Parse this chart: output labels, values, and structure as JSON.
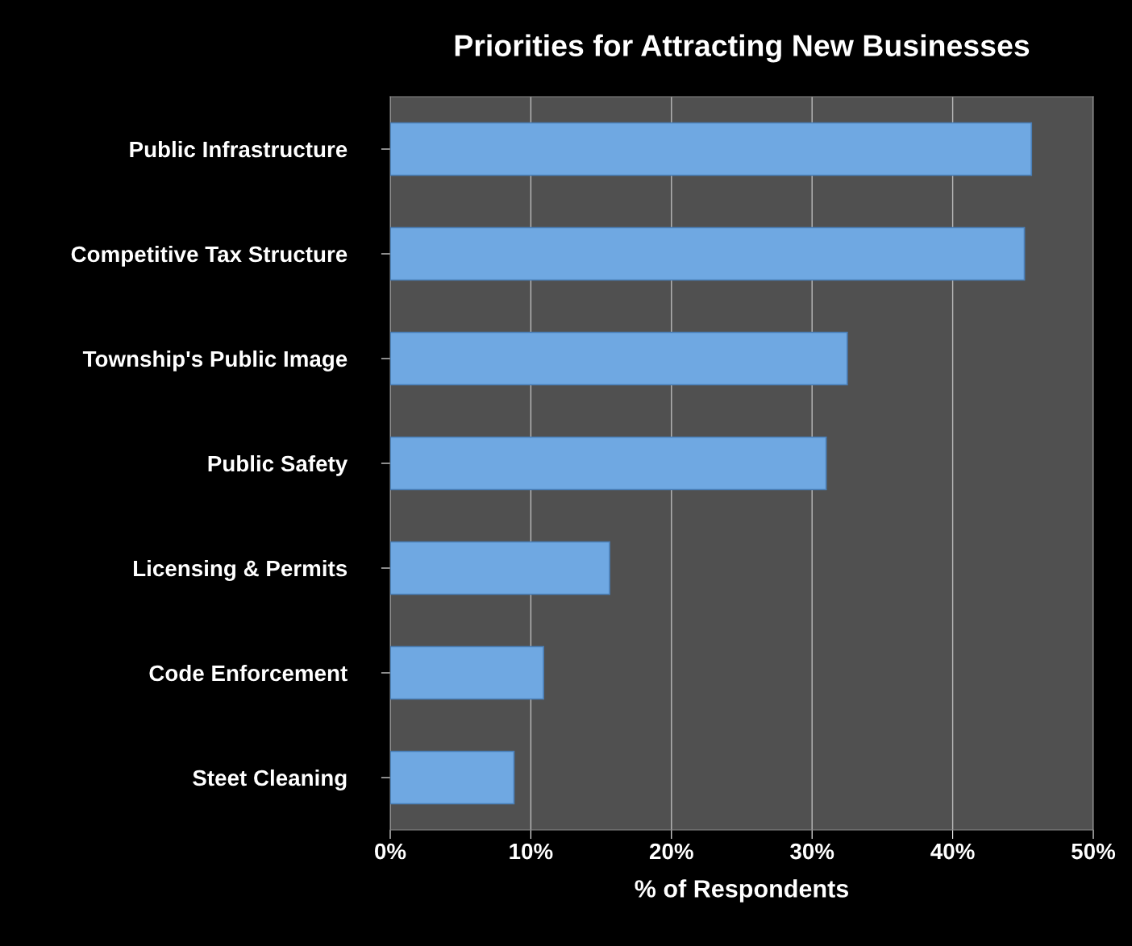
{
  "chart_data": {
    "type": "bar",
    "orientation": "horizontal",
    "title": "Priorities for Attracting New Businesses",
    "xlabel": "% of Respondents",
    "categories": [
      "Public Infrastructure",
      "Competitive Tax Structure",
      "Township's Public Image",
      "Public Safety",
      "Licensing & Permits",
      "Code Enforcement",
      "Steet Cleaning"
    ],
    "values": [
      45.6,
      45.1,
      32.5,
      31.0,
      15.6,
      10.9,
      8.8
    ],
    "color": "#6fa8e2",
    "xlim": [
      0,
      50
    ],
    "xticks": [
      {
        "value": 0,
        "label": "0%"
      },
      {
        "value": 10,
        "label": "10%"
      },
      {
        "value": 20,
        "label": "20%"
      },
      {
        "value": 30,
        "label": "30%"
      },
      {
        "value": 40,
        "label": "40%"
      },
      {
        "value": 50,
        "label": "50%"
      }
    ],
    "grid": "x",
    "legend": false
  }
}
